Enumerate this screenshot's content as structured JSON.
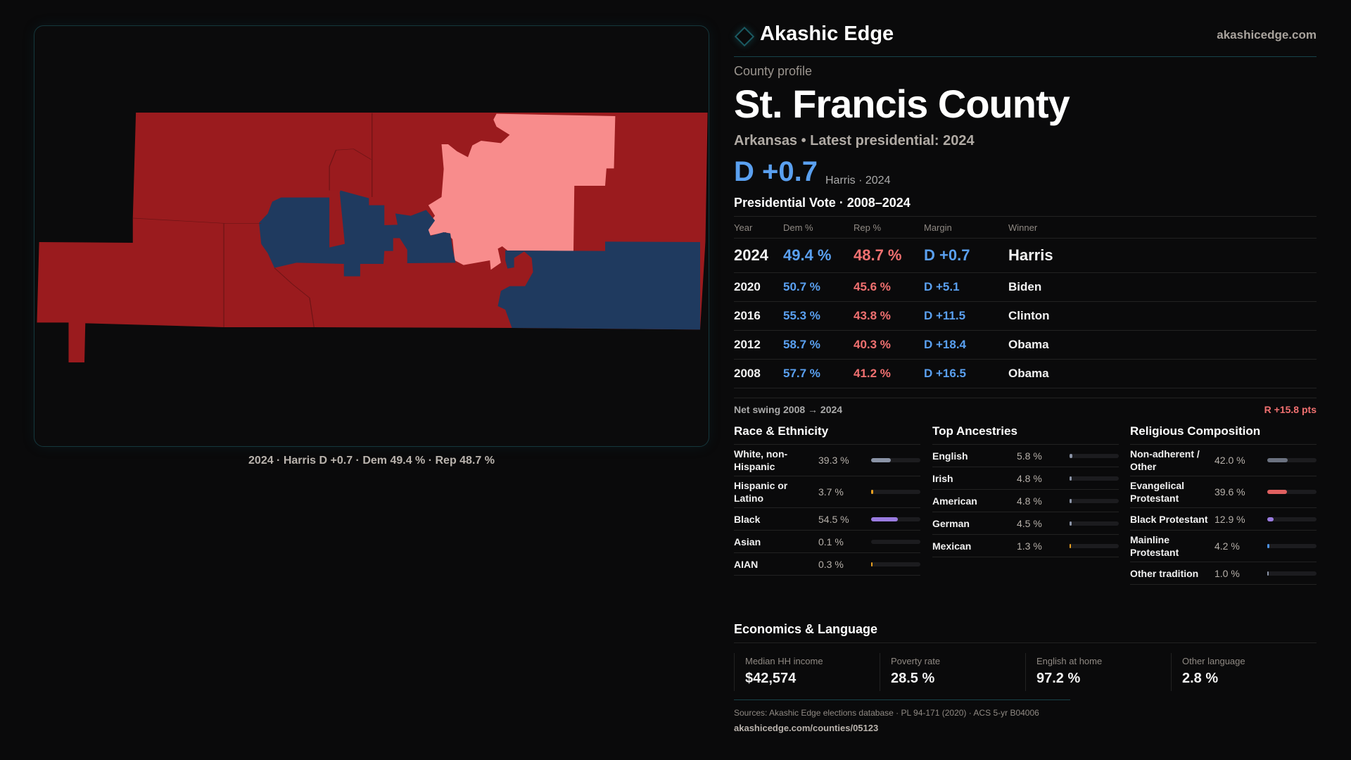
{
  "colors": {
    "dem": "#5aa0f0",
    "rep": "#f07070",
    "map_rep": "#9a1b1e",
    "map_rep_lean": "#f88c8c",
    "map_dem": "#1f3a5f",
    "accent": "#18434a"
  },
  "map": {
    "caption": "2024 · Harris D +0.7 · Dem 49.4 % · Rep 48.7 %"
  },
  "header": {
    "brand": "Akashic Edge",
    "site": "akashicedge.com",
    "logo_icon": "diamond-icon"
  },
  "profile": {
    "kicker": "County profile",
    "title": "St. Francis County",
    "subtitle": "Arkansas • Latest presidential: 2024",
    "margin": "D +0.7",
    "margin_sub": "Harris · 2024"
  },
  "votes": {
    "title": "Presidential Vote · 2008–2024",
    "headers": [
      "Year",
      "Dem %",
      "Rep %",
      "Margin",
      "Winner"
    ],
    "rows": [
      [
        "2024",
        "49.4 %",
        "48.7 %",
        "D +0.7",
        "Harris"
      ],
      [
        "2020",
        "50.7 %",
        "45.6 %",
        "D +5.1",
        "Biden"
      ],
      [
        "2016",
        "55.3 %",
        "43.8 %",
        "D +11.5",
        "Clinton"
      ],
      [
        "2012",
        "58.7 %",
        "40.3 %",
        "D +18.4",
        "Obama"
      ],
      [
        "2008",
        "57.7 %",
        "41.2 %",
        "D +16.5",
        "Obama"
      ]
    ],
    "swing_label": "Net swing 2008 → 2024",
    "swing_value": "R +15.8 pts"
  },
  "race": {
    "title": "Race & Ethnicity",
    "items": [
      {
        "label": "White, non-Hispanic",
        "value": "39.3 %",
        "pct": 39.3,
        "color": "#8a93a6"
      },
      {
        "label": "Hispanic or Latino",
        "value": "3.7 %",
        "pct": 3.7,
        "color": "#e8a020"
      },
      {
        "label": "Black",
        "value": "54.5 %",
        "pct": 54.5,
        "color": "#9a7be0"
      },
      {
        "label": "Asian",
        "value": "0.1 %",
        "pct": 0.1,
        "color": "#8a93a6"
      },
      {
        "label": "AIAN",
        "value": "0.3 %",
        "pct": 0.3,
        "color": "#e8a020"
      }
    ]
  },
  "ancestry": {
    "title": "Top Ancestries",
    "items": [
      {
        "label": "English",
        "value": "5.8 %",
        "pct": 5.8,
        "color": "#8a93a6"
      },
      {
        "label": "Irish",
        "value": "4.8 %",
        "pct": 4.8,
        "color": "#8a93a6"
      },
      {
        "label": "American",
        "value": "4.8 %",
        "pct": 4.8,
        "color": "#8a93a6"
      },
      {
        "label": "German",
        "value": "4.5 %",
        "pct": 4.5,
        "color": "#8a93a6"
      },
      {
        "label": "Mexican",
        "value": "1.3 %",
        "pct": 1.3,
        "color": "#e8a020"
      }
    ]
  },
  "religion": {
    "title": "Religious Composition",
    "items": [
      {
        "label": "Non-adherent / Other",
        "value": "42.0 %",
        "pct": 42.0,
        "color": "#6b7280"
      },
      {
        "label": "Evangelical Protestant",
        "value": "39.6 %",
        "pct": 39.6,
        "color": "#e06060"
      },
      {
        "label": "Black Protestant",
        "value": "12.9 %",
        "pct": 12.9,
        "color": "#9a7be0"
      },
      {
        "label": "Mainline Protestant",
        "value": "4.2 %",
        "pct": 4.2,
        "color": "#4a90e0"
      },
      {
        "label": "Other tradition",
        "value": "1.0 %",
        "pct": 1.0,
        "color": "#8a93a6"
      }
    ]
  },
  "economics": {
    "title": "Economics & Language",
    "cards": [
      {
        "label": "Median HH income",
        "value": "$42,574"
      },
      {
        "label": "Poverty rate",
        "value": "28.5 %"
      },
      {
        "label": "English at home",
        "value": "97.2 %"
      },
      {
        "label": "Other language",
        "value": "2.8 %"
      }
    ]
  },
  "footer": {
    "sources": "Sources: Akashic Edge elections database · PL 94-171 (2020) · ACS 5-yr B04006",
    "url": "akashicedge.com/counties/05123"
  }
}
